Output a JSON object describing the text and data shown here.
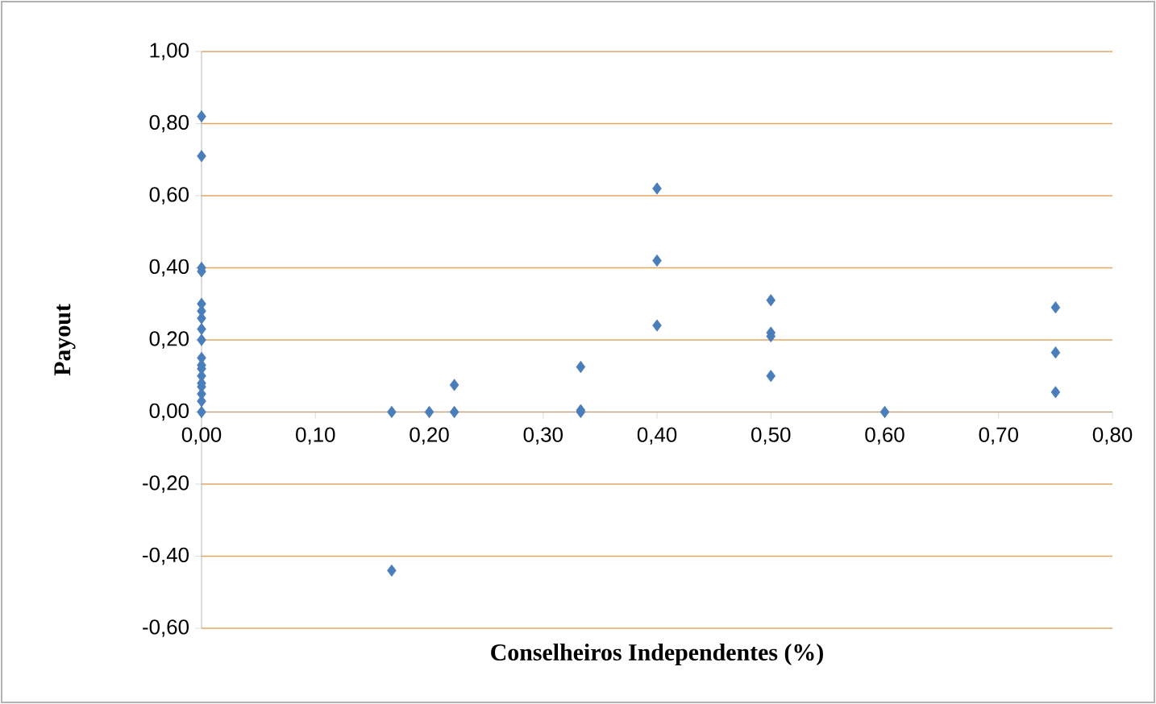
{
  "chart_data": {
    "type": "scatter",
    "xlabel": "Conselheiros Independentes (%)",
    "ylabel": "Payout",
    "series": [
      {
        "color": "#4a7ebb",
        "x": [
          0,
          0,
          0,
          0,
          0,
          0,
          0,
          0,
          0,
          0,
          0,
          0,
          0,
          0,
          0,
          0,
          0,
          0,
          0.167,
          0.167,
          0.2,
          0.222,
          0.222,
          0.333,
          0.333,
          0.333,
          0.4,
          0.4,
          0.4,
          0.5,
          0.5,
          0.5,
          0.5,
          0.6,
          0.75,
          0.75,
          0.75
        ],
        "values": [
          0.82,
          0.71,
          0.4,
          0.39,
          0.3,
          0.28,
          0.26,
          0.23,
          0.2,
          0.15,
          0.13,
          0.12,
          0.1,
          0.08,
          0.07,
          0.05,
          0.03,
          0,
          0,
          -0.44,
          0,
          0,
          0.075,
          0,
          0.005,
          0.125,
          0.62,
          0.42,
          0.24,
          0.31,
          0.22,
          0.21,
          0.1,
          0,
          0.29,
          0.165,
          0.055
        ]
      }
    ],
    "marker": "diamond",
    "grid": "y",
    "xlim": [
      0,
      0.8
    ],
    "ylim": [
      -0.6,
      1.0
    ],
    "xticks": [
      {
        "value": 0,
        "label": "0,00"
      },
      {
        "value": 0.1,
        "label": "0,10"
      },
      {
        "value": 0.2,
        "label": "0,20"
      },
      {
        "value": 0.3,
        "label": "0,30"
      },
      {
        "value": 0.4,
        "label": "0,40"
      },
      {
        "value": 0.5,
        "label": "0,50"
      },
      {
        "value": 0.6,
        "label": "0,60"
      },
      {
        "value": 0.7,
        "label": "0,70"
      },
      {
        "value": 0.8,
        "label": "0,80"
      }
    ],
    "yticks": [
      {
        "value": -0.6,
        "label": "-0,60"
      },
      {
        "value": -0.4,
        "label": "-0,40"
      },
      {
        "value": -0.2,
        "label": "-0,20"
      },
      {
        "value": 0,
        "label": "0,00"
      },
      {
        "value": 0.2,
        "label": "0,20"
      },
      {
        "value": 0.4,
        "label": "0,40"
      },
      {
        "value": 0.6,
        "label": "0,60"
      },
      {
        "value": 0.8,
        "label": "0,80"
      },
      {
        "value": 1.0,
        "label": "1,00"
      }
    ]
  }
}
